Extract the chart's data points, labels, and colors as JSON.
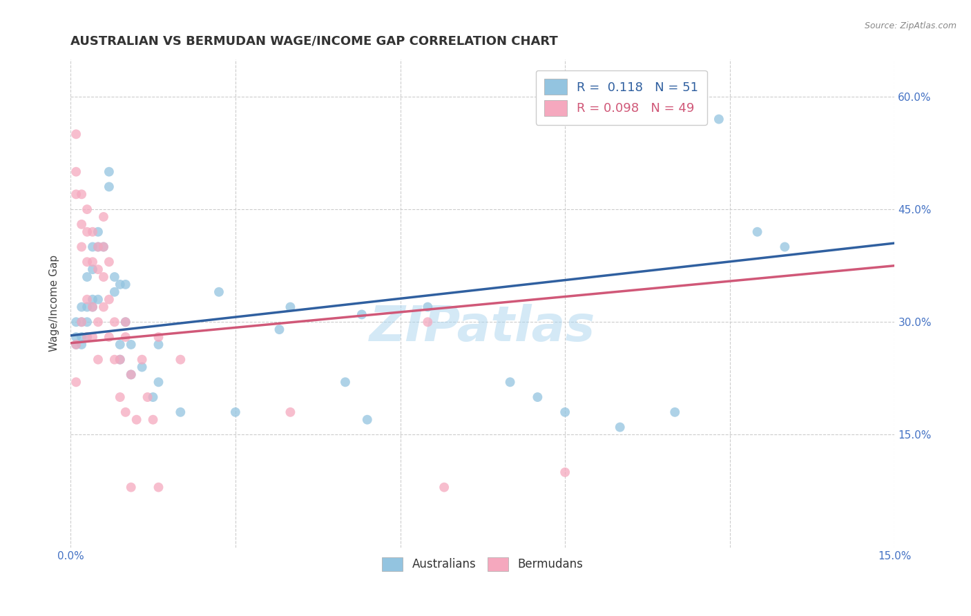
{
  "title": "AUSTRALIAN VS BERMUDAN WAGE/INCOME GAP CORRELATION CHART",
  "source": "Source: ZipAtlas.com",
  "ylabel": "Wage/Income Gap",
  "xlim": [
    0.0,
    0.15
  ],
  "ylim": [
    0.0,
    0.65
  ],
  "ytick_labels": [
    "15.0%",
    "30.0%",
    "45.0%",
    "60.0%"
  ],
  "ytick_values": [
    0.15,
    0.3,
    0.45,
    0.6
  ],
  "xtick_values": [
    0.0,
    0.03,
    0.06,
    0.09,
    0.12,
    0.15
  ],
  "xtick_display": [
    "0.0%",
    "",
    "",
    "",
    "",
    "15.0%"
  ],
  "watermark": "ZIPatlas",
  "legend_r_blue": "0.118",
  "legend_n_blue": "51",
  "legend_r_pink": "0.098",
  "legend_n_pink": "49",
  "legend_label_blue": "Australians",
  "legend_label_pink": "Bermudans",
  "blue_color": "#93c4e0",
  "pink_color": "#f5a8be",
  "blue_line_color": "#3060a0",
  "pink_line_color": "#d05878",
  "blue_x": [
    0.001,
    0.001,
    0.001,
    0.002,
    0.002,
    0.002,
    0.002,
    0.003,
    0.003,
    0.003,
    0.003,
    0.004,
    0.004,
    0.004,
    0.004,
    0.005,
    0.005,
    0.005,
    0.006,
    0.007,
    0.007,
    0.008,
    0.008,
    0.009,
    0.009,
    0.009,
    0.01,
    0.01,
    0.011,
    0.011,
    0.013,
    0.015,
    0.016,
    0.016,
    0.02,
    0.027,
    0.03,
    0.038,
    0.04,
    0.05,
    0.053,
    0.054,
    0.065,
    0.08,
    0.085,
    0.09,
    0.1,
    0.11,
    0.118,
    0.125,
    0.13
  ],
  "blue_y": [
    0.3,
    0.28,
    0.27,
    0.32,
    0.3,
    0.28,
    0.27,
    0.36,
    0.32,
    0.3,
    0.28,
    0.4,
    0.37,
    0.33,
    0.32,
    0.42,
    0.4,
    0.33,
    0.4,
    0.5,
    0.48,
    0.36,
    0.34,
    0.35,
    0.27,
    0.25,
    0.35,
    0.3,
    0.27,
    0.23,
    0.24,
    0.2,
    0.27,
    0.22,
    0.18,
    0.34,
    0.18,
    0.29,
    0.32,
    0.22,
    0.31,
    0.17,
    0.32,
    0.22,
    0.2,
    0.18,
    0.16,
    0.18,
    0.57,
    0.42,
    0.4
  ],
  "pink_x": [
    0.001,
    0.001,
    0.001,
    0.001,
    0.001,
    0.002,
    0.002,
    0.002,
    0.002,
    0.003,
    0.003,
    0.003,
    0.003,
    0.003,
    0.004,
    0.004,
    0.004,
    0.004,
    0.005,
    0.005,
    0.005,
    0.005,
    0.006,
    0.006,
    0.006,
    0.006,
    0.007,
    0.007,
    0.007,
    0.008,
    0.008,
    0.009,
    0.009,
    0.01,
    0.01,
    0.01,
    0.011,
    0.011,
    0.012,
    0.013,
    0.014,
    0.015,
    0.016,
    0.016,
    0.02,
    0.04,
    0.065,
    0.068,
    0.09
  ],
  "pink_y": [
    0.55,
    0.5,
    0.47,
    0.27,
    0.22,
    0.47,
    0.43,
    0.4,
    0.3,
    0.45,
    0.42,
    0.38,
    0.33,
    0.28,
    0.42,
    0.38,
    0.32,
    0.28,
    0.4,
    0.37,
    0.3,
    0.25,
    0.44,
    0.4,
    0.36,
    0.32,
    0.38,
    0.33,
    0.28,
    0.3,
    0.25,
    0.25,
    0.2,
    0.3,
    0.28,
    0.18,
    0.23,
    0.08,
    0.17,
    0.25,
    0.2,
    0.17,
    0.28,
    0.08,
    0.25,
    0.18,
    0.3,
    0.08,
    0.1
  ],
  "grid_color": "#cccccc",
  "background_color": "#ffffff",
  "title_fontsize": 13,
  "axis_label_fontsize": 11,
  "tick_fontsize": 11,
  "marker_size": 100
}
